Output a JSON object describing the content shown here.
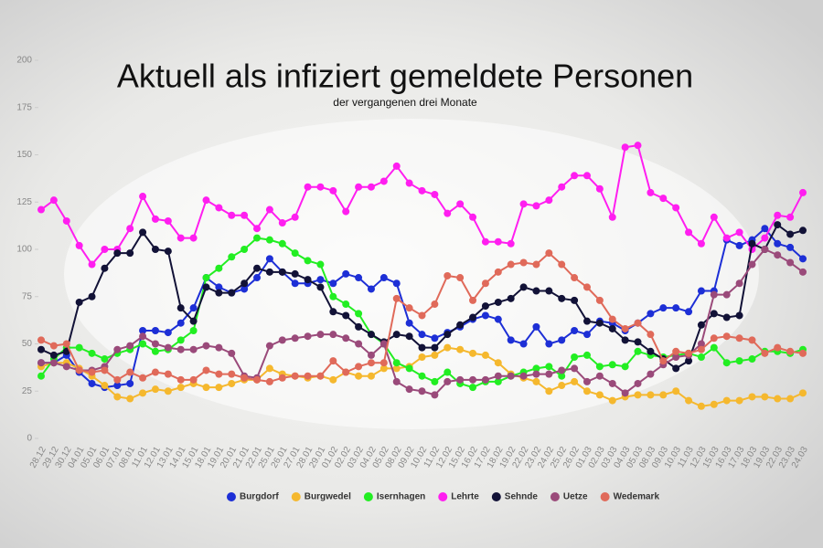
{
  "chart_data": {
    "type": "line",
    "title": "Aktuell als infiziert gemeldete Personen",
    "subtitle": "der vergangenen drei Monate",
    "categories": [
      "28.12",
      "29.12",
      "30.12",
      "04.01",
      "05.01",
      "06.01",
      "07.01",
      "08.01",
      "11.01",
      "12.01",
      "13.01",
      "14.01",
      "15.01",
      "18.01",
      "19.01",
      "20.01",
      "21.01",
      "22.01",
      "25.01",
      "26.01",
      "27.01",
      "28.01",
      "29.01",
      "01.02",
      "02.02",
      "03.02",
      "04.02",
      "05.02",
      "08.02",
      "09.02",
      "10.02",
      "11.02",
      "12.02",
      "15.02",
      "16.02",
      "17.02",
      "18.02",
      "19.02",
      "22.02",
      "23.02",
      "24.02",
      "25.02",
      "26.02",
      "01.03",
      "02.03",
      "03.03",
      "04.03",
      "05.03",
      "08.03",
      "09.03",
      "10.03",
      "11.03",
      "12.03",
      "15.03",
      "16.03",
      "17.03",
      "18.03",
      "19.03",
      "22.03",
      "23.03",
      "24.03"
    ],
    "series": [
      {
        "name": "Burgdorf",
        "color": "#1d2fd6",
        "values": [
          40,
          40,
          44,
          35,
          29,
          27,
          28,
          29,
          57,
          57,
          56,
          61,
          69,
          85,
          80,
          77,
          79,
          85,
          95,
          88,
          82,
          82,
          84,
          82,
          87,
          85,
          79,
          85,
          82,
          61,
          55,
          53,
          56,
          59,
          63,
          65,
          63,
          52,
          50,
          59,
          50,
          52,
          57,
          55,
          62,
          61,
          57,
          61,
          66,
          69,
          69,
          67,
          78,
          78,
          105,
          102,
          105,
          111,
          103,
          101,
          95
        ]
      },
      {
        "name": "Burgwedel",
        "color": "#f5b82e",
        "values": [
          38,
          40,
          40,
          37,
          33,
          28,
          22,
          21,
          24,
          26,
          25,
          27,
          29,
          27,
          27,
          29,
          31,
          31,
          37,
          34,
          33,
          32,
          33,
          31,
          35,
          33,
          33,
          37,
          37,
          38,
          43,
          44,
          48,
          47,
          45,
          44,
          40,
          34,
          32,
          30,
          25,
          28,
          30,
          25,
          23,
          20,
          22,
          23,
          23,
          23,
          25,
          20,
          17,
          18,
          20,
          20,
          22,
          22,
          21,
          21,
          24
        ]
      },
      {
        "name": "Isernhagen",
        "color": "#22ee22",
        "values": [
          33,
          42,
          48,
          48,
          45,
          42,
          45,
          47,
          50,
          46,
          47,
          52,
          57,
          85,
          90,
          96,
          100,
          106,
          105,
          103,
          98,
          94,
          92,
          75,
          71,
          66,
          55,
          50,
          40,
          37,
          33,
          30,
          35,
          29,
          27,
          30,
          30,
          33,
          35,
          37,
          38,
          33,
          43,
          44,
          38,
          39,
          38,
          46,
          44,
          43,
          44,
          45,
          43,
          48,
          40,
          41,
          42,
          46,
          46,
          45,
          47
        ]
      },
      {
        "name": "Lehrte",
        "color": "#ff1ef0",
        "values": [
          121,
          126,
          115,
          102,
          92,
          100,
          100,
          111,
          128,
          116,
          115,
          106,
          106,
          126,
          122,
          118,
          118,
          111,
          121,
          114,
          117,
          133,
          133,
          131,
          120,
          133,
          133,
          136,
          144,
          135,
          131,
          129,
          119,
          124,
          117,
          104,
          104,
          103,
          124,
          123,
          126,
          133,
          139,
          139,
          132,
          117,
          154,
          155,
          130,
          127,
          122,
          109,
          103,
          117,
          106,
          109,
          100,
          106,
          118,
          117,
          130
        ]
      },
      {
        "name": "Sehnde",
        "color": "#121237",
        "values": [
          47,
          44,
          46,
          72,
          75,
          90,
          98,
          98,
          109,
          100,
          99,
          69,
          62,
          80,
          77,
          77,
          82,
          90,
          88,
          88,
          87,
          84,
          80,
          67,
          65,
          59,
          55,
          51,
          55,
          54,
          48,
          48,
          55,
          60,
          64,
          70,
          72,
          74,
          80,
          78,
          78,
          74,
          73,
          62,
          61,
          58,
          52,
          51,
          46,
          42,
          37,
          41,
          60,
          66,
          64,
          65,
          103,
          100,
          113,
          108,
          110
        ]
      },
      {
        "name": "Uetze",
        "color": "#9a4a7a",
        "values": [
          40,
          40,
          38,
          36,
          36,
          38,
          47,
          49,
          54,
          50,
          48,
          47,
          47,
          49,
          48,
          45,
          33,
          32,
          49,
          52,
          53,
          54,
          55,
          55,
          53,
          50,
          44,
          50,
          30,
          26,
          25,
          23,
          30,
          31,
          31,
          31,
          33,
          33,
          33,
          34,
          34,
          36,
          37,
          30,
          33,
          29,
          24,
          29,
          34,
          39,
          43,
          44,
          50,
          76,
          76,
          82,
          92,
          100,
          97,
          93,
          88
        ]
      },
      {
        "name": "Wedemark",
        "color": "#e06a5a",
        "values": [
          52,
          49,
          50,
          36,
          35,
          36,
          31,
          35,
          32,
          35,
          34,
          31,
          31,
          36,
          34,
          34,
          32,
          31,
          30,
          32,
          33,
          33,
          33,
          41,
          35,
          38,
          40,
          40,
          74,
          69,
          65,
          71,
          86,
          85,
          73,
          82,
          88,
          92,
          93,
          92,
          98,
          92,
          85,
          80,
          73,
          63,
          58,
          61,
          55,
          41,
          46,
          45,
          47,
          53,
          54,
          53,
          52,
          45,
          48,
          46,
          45
        ]
      }
    ],
    "ylim": [
      0,
      200
    ],
    "yticks": [
      0,
      25,
      50,
      75,
      100,
      125,
      150,
      175,
      200
    ],
    "legend": "bottom"
  }
}
